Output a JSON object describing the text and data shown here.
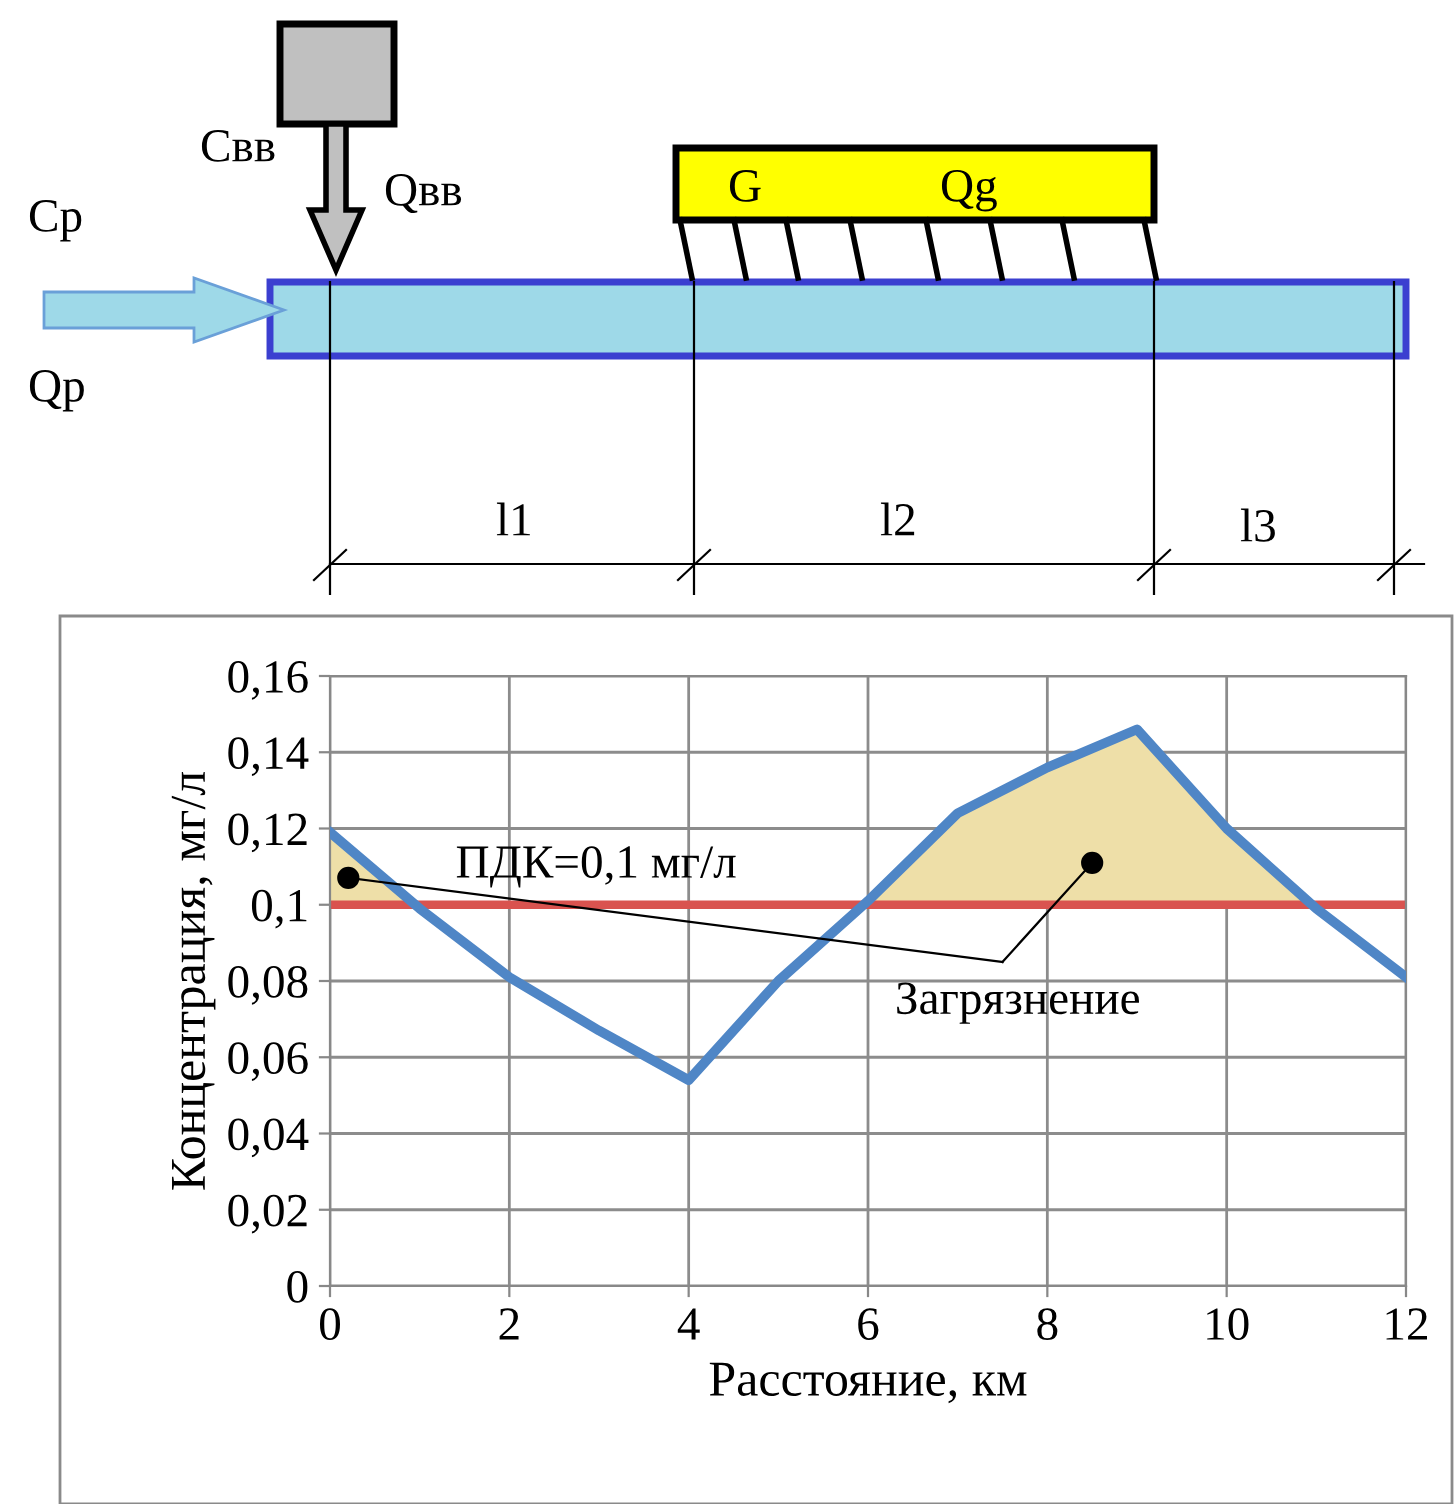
{
  "chart_data": {
    "type": "line",
    "xlabel": "Расстояние, км",
    "ylabel": "Концентрация, мг/л",
    "x": [
      0,
      1,
      2,
      3,
      4,
      5,
      6,
      7,
      8,
      9,
      10,
      11,
      12
    ],
    "series": [
      {
        "color": "#4f86c6",
        "values": [
          0.119,
          0.099,
          0.081,
          0.067,
          0.054,
          0.08,
          0.101,
          0.124,
          0.136,
          0.146,
          0.12,
          0.099,
          0.081
        ]
      },
      {
        "type": "area",
        "color": "#eedfa8",
        "x": [
          0,
          0.95,
          3,
          5.95,
          6,
          7,
          8,
          9,
          10,
          10.9
        ],
        "values": [
          0.119,
          0.1,
          null,
          0.1,
          0.101,
          0.124,
          0.136,
          0.146,
          0.12,
          0.1
        ]
      }
    ],
    "xlim": [
      0,
      12
    ],
    "xticks": [
      0,
      2,
      4,
      6,
      8,
      10,
      12
    ],
    "ylim": [
      0,
      0.16
    ],
    "yticks": [
      {
        "value": 0,
        "label": "0"
      },
      {
        "value": 0.02,
        "label": "0,02"
      },
      {
        "value": 0.04,
        "label": "0,04"
      },
      {
        "value": 0.06,
        "label": "0,06"
      },
      {
        "value": 0.08,
        "label": "0,08"
      },
      {
        "value": 0.1,
        "label": "0,1"
      },
      {
        "value": 0.12,
        "label": "0,12"
      },
      {
        "value": 0.14,
        "label": "0,14"
      },
      {
        "value": 0.16,
        "label": "0,16"
      }
    ],
    "ref_lines": [
      {
        "axis": "y",
        "value": 0.1,
        "label": "ПДК=0,1 мг/л",
        "color": "#d9534f"
      }
    ],
    "annotations": [
      {
        "text": "Загрязнение",
        "x": 8.5,
        "y": 0.111
      },
      "Cp",
      "Qp",
      "Cвв",
      "Qвв",
      "G",
      "Qg",
      "l1",
      "l2",
      "l3"
    ],
    "grid": true
  }
}
